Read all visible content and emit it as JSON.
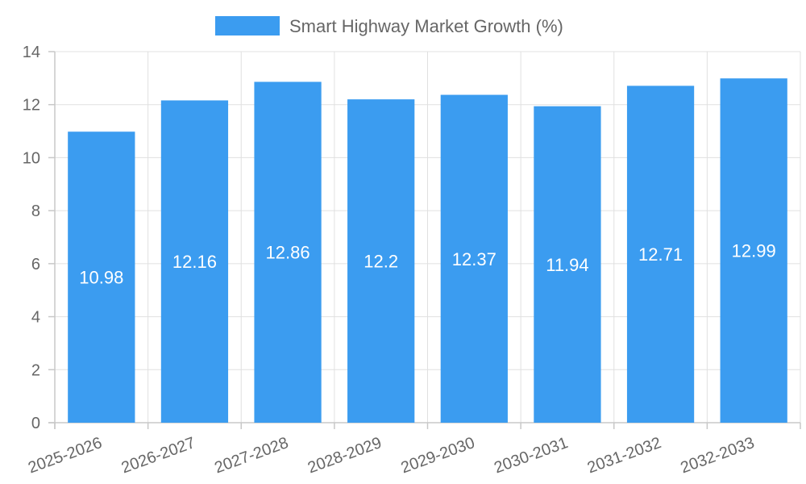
{
  "chart_data": {
    "type": "bar",
    "title": "",
    "xlabel": "",
    "ylabel": "",
    "categories": [
      "2025-2026",
      "2026-2027",
      "2027-2028",
      "2028-2029",
      "2029-2030",
      "2030-2031",
      "2031-2032",
      "2032-2033"
    ],
    "series": [
      {
        "name": "Smart Highway Market Growth (%)",
        "values": [
          10.98,
          12.16,
          12.86,
          12.2,
          12.37,
          11.94,
          12.71,
          12.99
        ],
        "labels": [
          "10.98",
          "12.16",
          "12.86",
          "12.2",
          "12.37",
          "11.94",
          "12.71",
          "12.99"
        ]
      }
    ],
    "ylim": [
      0,
      14
    ],
    "yticks": [
      "0",
      "2",
      "4",
      "6",
      "8",
      "10",
      "12",
      "14"
    ],
    "grid": true,
    "legend_position": "top-center",
    "colors": {
      "bar": "#3b9cf0",
      "grid": "#e0e0e0",
      "axis": "#c8c8c8",
      "text": "#666666",
      "label": "#ffffff"
    }
  }
}
